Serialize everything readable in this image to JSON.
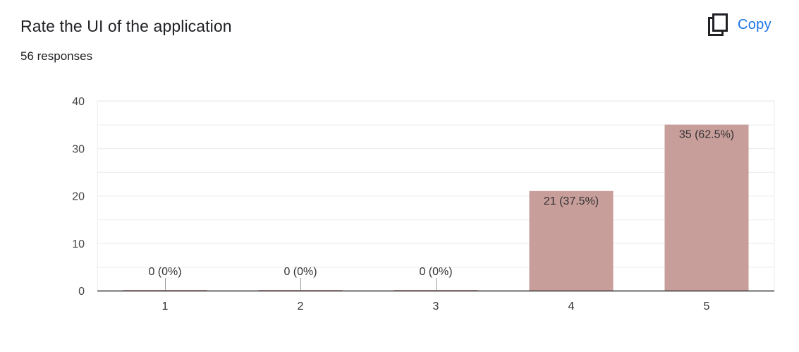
{
  "question": {
    "title": "Rate the UI of the application",
    "responses": "56 responses"
  },
  "toolbar": {
    "copy_label": "Copy",
    "copy_icon": "copy-icon"
  },
  "colors": {
    "bar": "#c89e9b",
    "link": "#1a73e8",
    "text": "#202124",
    "grid": "#ebebeb",
    "axis": "#333333"
  },
  "chart_data": {
    "type": "bar",
    "categories": [
      "1",
      "2",
      "3",
      "4",
      "5"
    ],
    "values": [
      0,
      0,
      0,
      21,
      35
    ],
    "data_labels": [
      "0 (0%)",
      "0 (0%)",
      "0 (0%)",
      "21 (37.5%)",
      "35 (62.5%)"
    ],
    "ylim": [
      0,
      40
    ],
    "y_ticks": [
      0,
      10,
      20,
      30,
      40
    ],
    "y_tick_labels": [
      "0",
      "10",
      "20",
      "30",
      "40"
    ],
    "grid": true,
    "legend": "none"
  }
}
